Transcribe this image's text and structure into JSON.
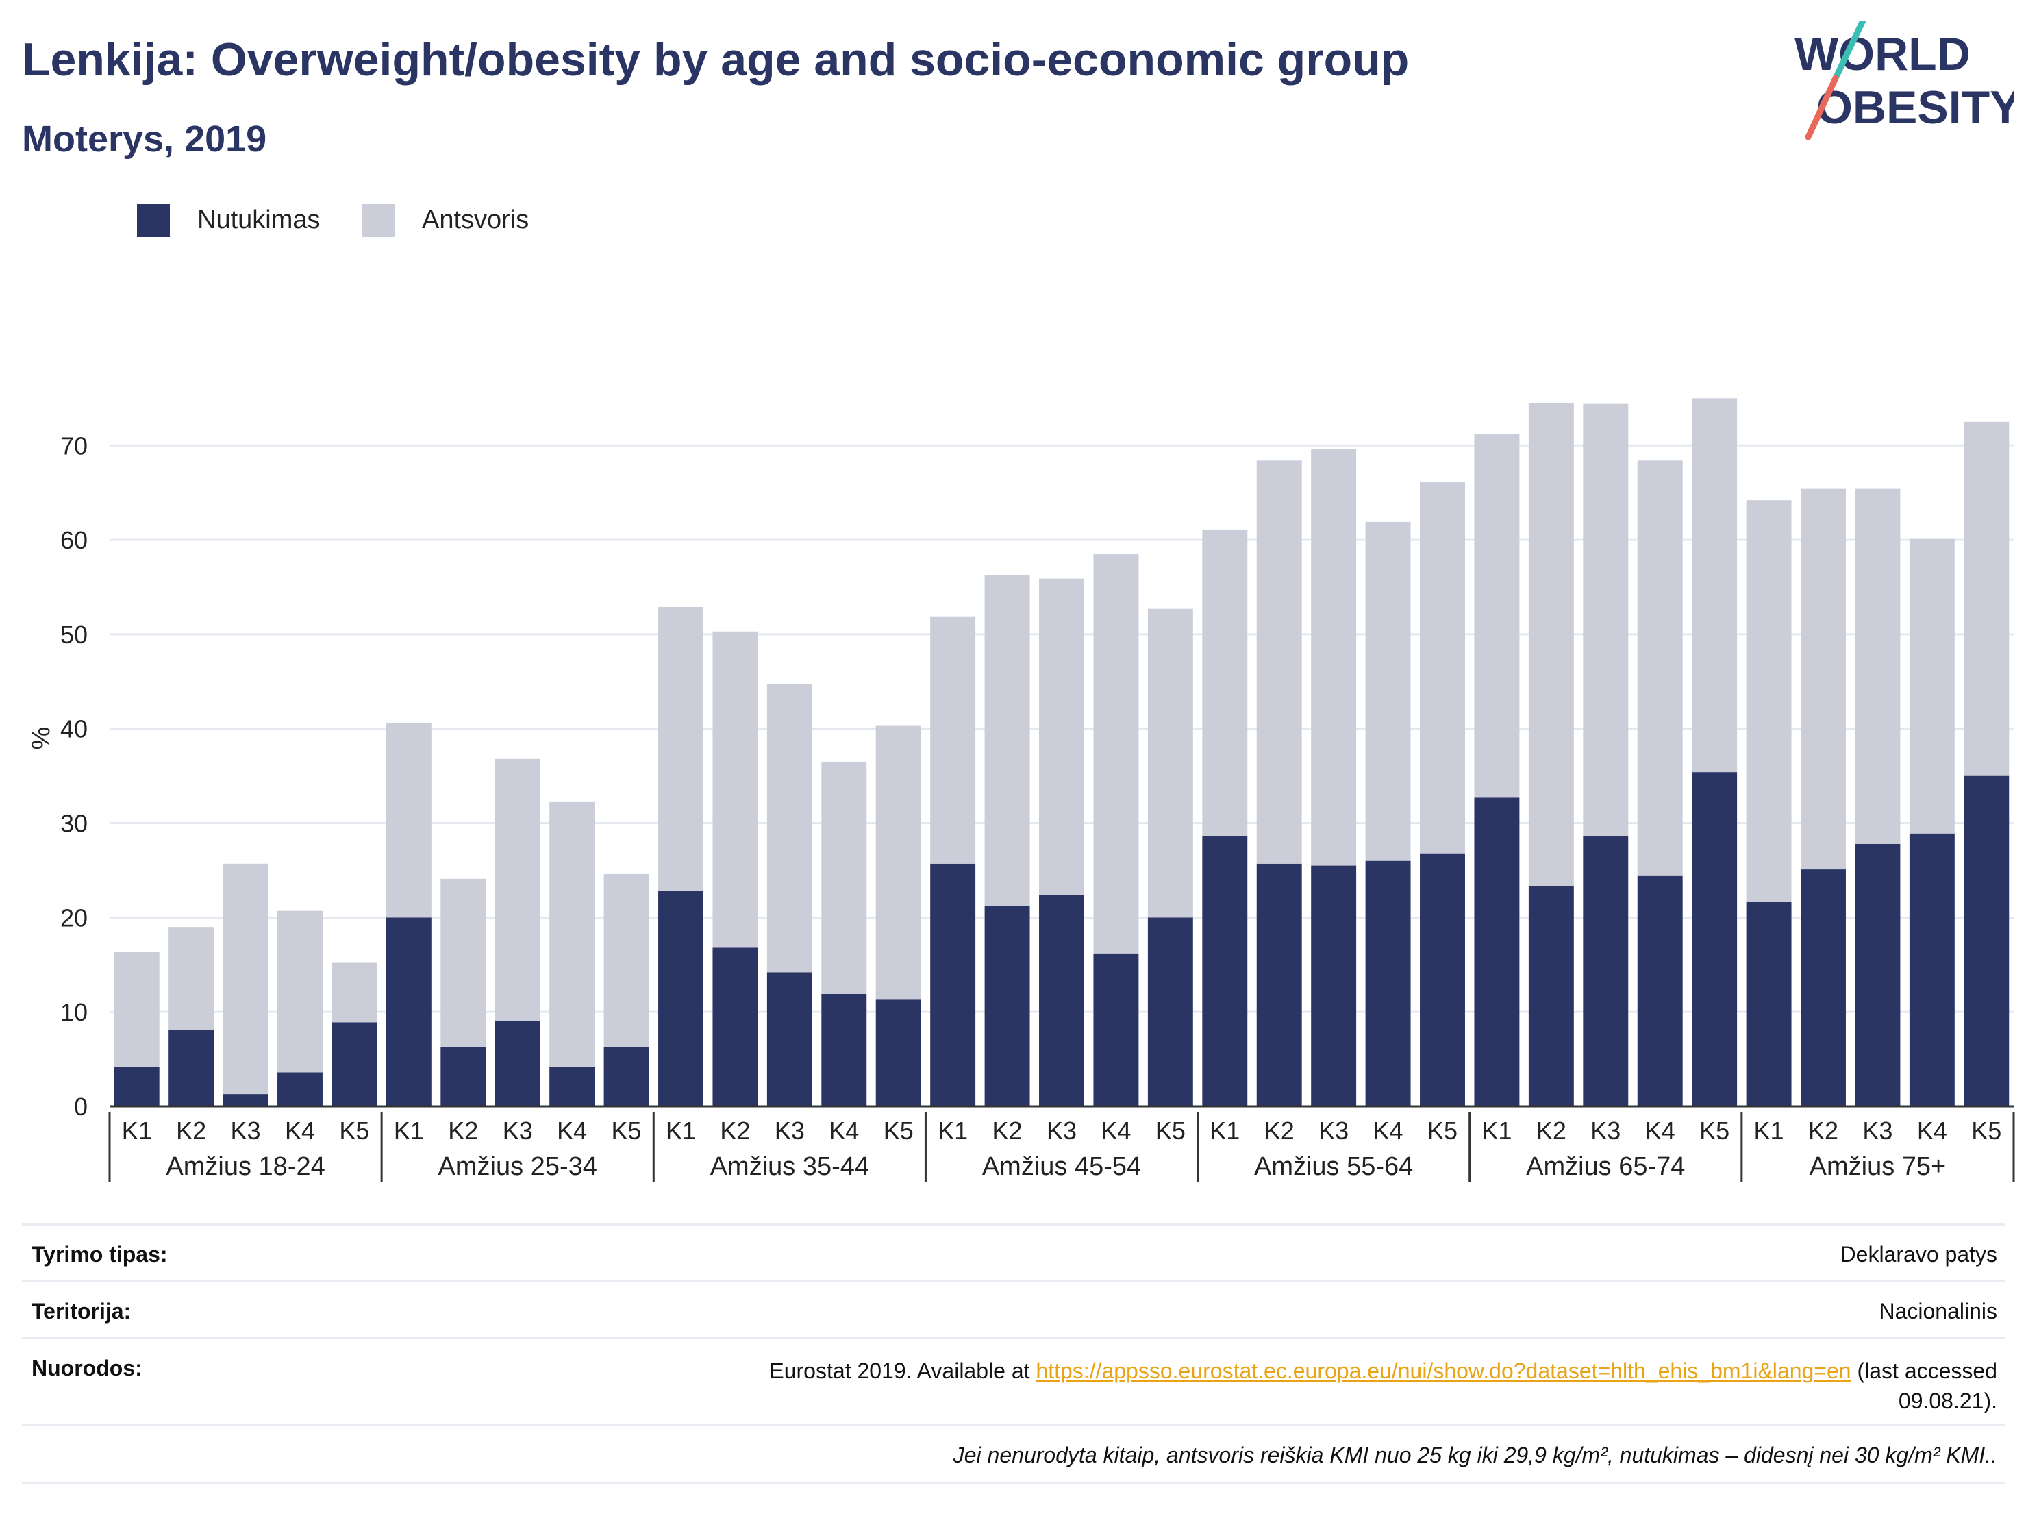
{
  "header": {
    "title": "Lenkija: Overweight/obesity by age and socio-economic group",
    "subtitle": "Moterys, 2019"
  },
  "logo": {
    "line1": "WORLD",
    "line2": "OBESITY",
    "accent_teal": "#3bbfb4",
    "accent_red": "#e8685a",
    "text_color": "#2a3564"
  },
  "legend": [
    {
      "label": "Nutukimas",
      "color": "#2a3564"
    },
    {
      "label": "Antsvoris",
      "color": "#cbcdd9"
    }
  ],
  "chart_data": {
    "type": "bar",
    "stacked": true,
    "ylabel": "%",
    "ylim": [
      0,
      78
    ],
    "yticks": [
      0,
      10,
      20,
      30,
      40,
      50,
      60,
      70
    ],
    "grid": true,
    "legend_position": "top-left",
    "subcategories": [
      "K1",
      "K2",
      "K3",
      "K4",
      "K5"
    ],
    "groups": [
      "Amžius 18-24",
      "Amžius 25-34",
      "Amžius 35-44",
      "Amžius 45-54",
      "Amžius 55-64",
      "Amžius 65-74",
      "Amžius 75+"
    ],
    "series": [
      {
        "name": "Nutukimas",
        "color": "#2a3564",
        "values": [
          4.2,
          8.1,
          1.3,
          3.6,
          8.9,
          20.0,
          6.3,
          9.0,
          4.2,
          6.3,
          22.8,
          16.8,
          14.2,
          11.9,
          11.3,
          25.7,
          21.2,
          22.4,
          16.2,
          20.0,
          28.6,
          25.7,
          25.5,
          26.0,
          26.8,
          32.7,
          23.3,
          28.6,
          24.4,
          35.4,
          21.7,
          25.1,
          27.8,
          28.9,
          35.0
        ]
      },
      {
        "name": "Antsvoris",
        "color": "#cbcdd9",
        "values": [
          12.2,
          10.9,
          24.4,
          17.1,
          6.3,
          20.6,
          17.8,
          27.8,
          28.1,
          18.3,
          30.1,
          33.5,
          30.5,
          24.6,
          29.0,
          26.2,
          35.1,
          33.5,
          42.3,
          32.7,
          32.5,
          42.7,
          44.1,
          35.9,
          39.3,
          38.5,
          51.2,
          45.8,
          44.0,
          39.6,
          42.5,
          40.3,
          37.6,
          31.2,
          37.5
        ]
      }
    ]
  },
  "footer": {
    "survey_type": {
      "label": "Tyrimo tipas:",
      "value": "Deklaravo patys"
    },
    "territory": {
      "label": "Teritorija:",
      "value": "Nacionalinis"
    },
    "references": {
      "label": "Nuorodos:",
      "prefix": "Eurostat 2019. Available at ",
      "link_text": "https://appsso.eurostat.ec.europa.eu/nui/show.do?dataset=hlth_ehis_bm1i&lang=en",
      "suffix": " (last accessed",
      "line2": "09.08.21)."
    },
    "note": "Jei nenurodyta kitaip, antsvoris reiškia KMI nuo 25 kg iki 29,9 kg/m², nutukimas – didesnį nei 30 kg/m² KMI.."
  }
}
